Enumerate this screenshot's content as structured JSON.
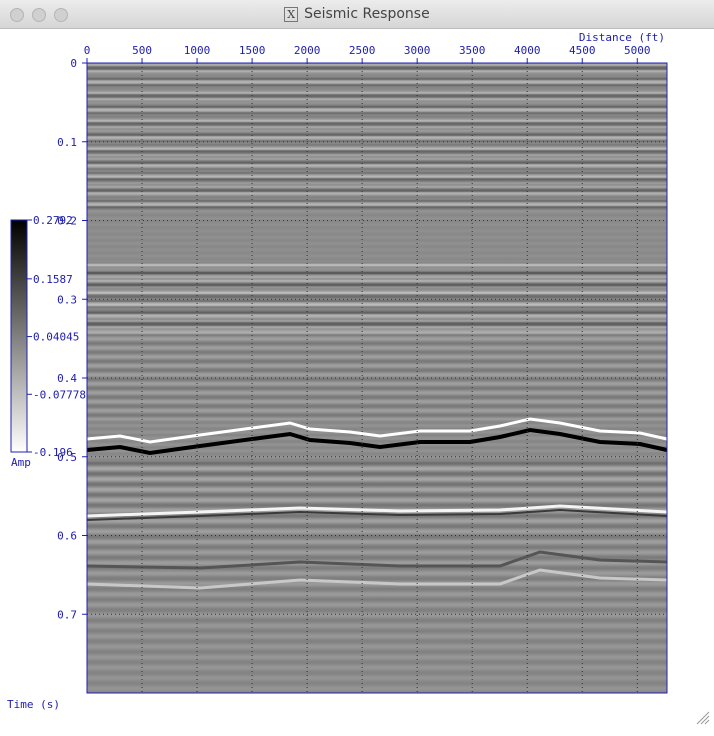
{
  "window": {
    "title": "Seismic Response"
  },
  "chart_data": {
    "type": "image",
    "x_label": "Distance (ft)",
    "y_label": "Time (s)",
    "xlim": [
      0,
      5270
    ],
    "xticks": [
      0,
      500,
      1000,
      1500,
      2000,
      2500,
      3000,
      3500,
      4000,
      4500,
      5000
    ],
    "ylim": [
      0,
      0.8
    ],
    "yticks": [
      0,
      0.1,
      0.2,
      0.3,
      0.4,
      0.5,
      0.6,
      0.7
    ],
    "grid": true,
    "axis_color": "#2020b0",
    "colorbar": {
      "label": "Amp",
      "lim": [
        -0.196,
        0.2792
      ],
      "ticks": [
        0.2792,
        0.1587,
        0.04045,
        -0.07778,
        -0.196
      ]
    }
  }
}
